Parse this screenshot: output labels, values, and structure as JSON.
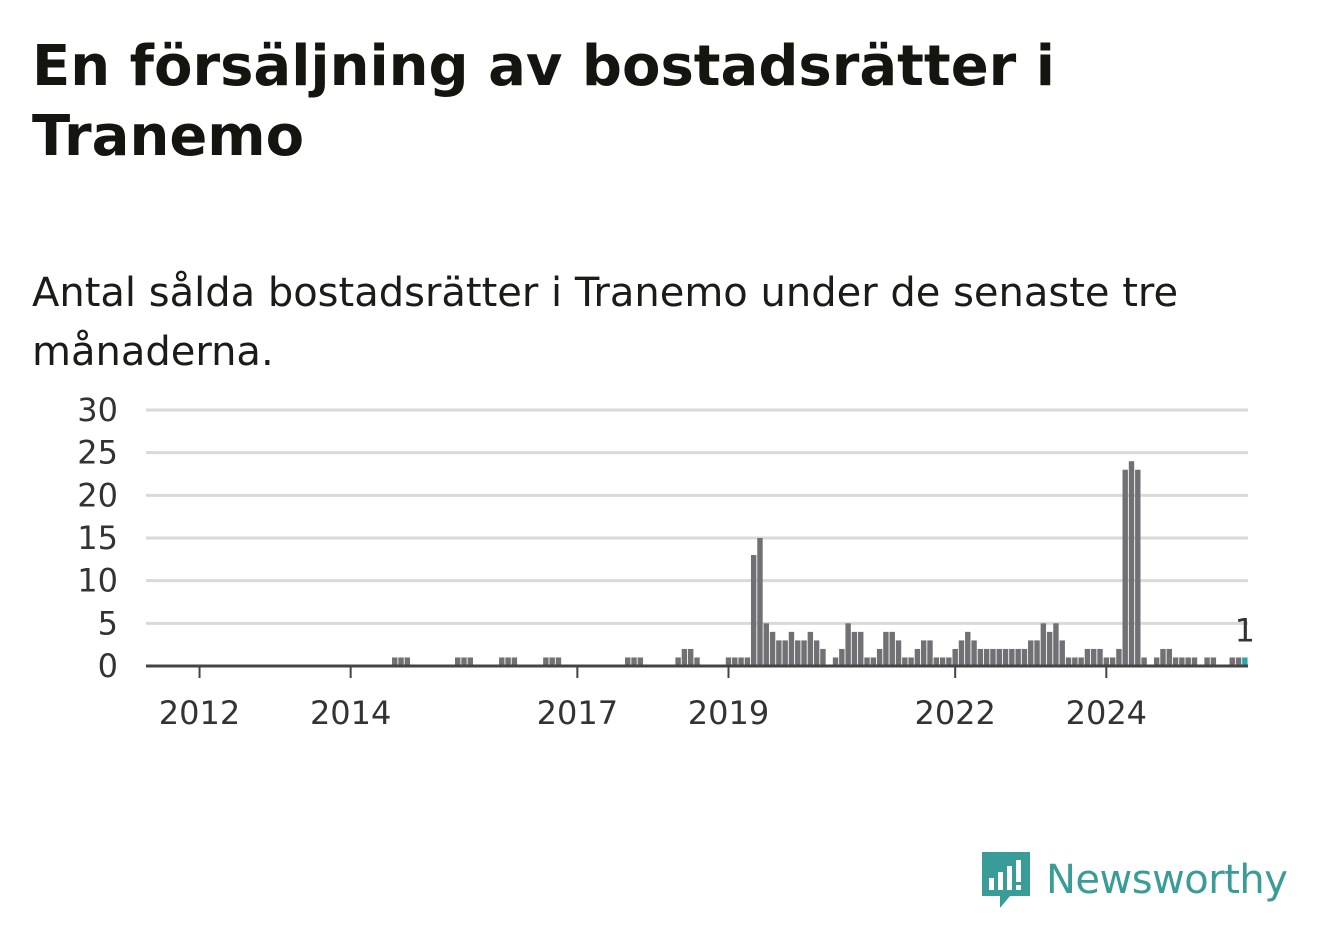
{
  "title": "En försäljning av bostadsrätter i Tranemo",
  "subtitle": "Antal sålda bostadsrätter i Tranemo under de senaste tre månaderna.",
  "brand": {
    "name": "Newsworthy",
    "icon": "newsworthy-logo-icon",
    "color": "#3a9c98"
  },
  "chart_data": {
    "type": "bar",
    "title": "En försäljning av bostadsrätter i Tranemo",
    "subtitle": "Antal sålda bostadsrätter i Tranemo under de senaste tre månaderna.",
    "xlabel": "",
    "ylabel": "",
    "ylim": [
      0,
      30
    ],
    "yticks": [
      "0",
      "5",
      "10",
      "15",
      "20",
      "25",
      "30"
    ],
    "xticks": [
      {
        "label": "2012",
        "x": "2012-01"
      },
      {
        "label": "2014",
        "x": "2014-01"
      },
      {
        "label": "2017",
        "x": "2017-01"
      },
      {
        "label": "2019",
        "x": "2019-01"
      },
      {
        "label": "2022",
        "x": "2022-01"
      },
      {
        "label": "2024",
        "x": "2024-01"
      }
    ],
    "grid": true,
    "bar_color": "#717074",
    "highlight_color": "#2aa7ae",
    "highlight_label": "1",
    "start": "2011-05",
    "series": [
      {
        "values": [
          0,
          0,
          0,
          0,
          0,
          0,
          0,
          0,
          0,
          0,
          0,
          0,
          0,
          0,
          0,
          0,
          0,
          0,
          0,
          0,
          0,
          0,
          0,
          0,
          0,
          0,
          0,
          0,
          0,
          0,
          0,
          0,
          0,
          0,
          0,
          0,
          0,
          0,
          0,
          1,
          1,
          1,
          0,
          0,
          0,
          0,
          0,
          0,
          0,
          1,
          1,
          1,
          0,
          0,
          0,
          0,
          1,
          1,
          1,
          0,
          0,
          0,
          0,
          1,
          1,
          1,
          0,
          0,
          0,
          0,
          0,
          0,
          0,
          0,
          0,
          0,
          1,
          1,
          1,
          0,
          0,
          0,
          0,
          0,
          1,
          2,
          2,
          1,
          0,
          0,
          0,
          0,
          1,
          1,
          1,
          1,
          13,
          15,
          5,
          4,
          3,
          3,
          4,
          3,
          3,
          4,
          3,
          2,
          0,
          1,
          2,
          5,
          4,
          4,
          1,
          1,
          2,
          4,
          4,
          3,
          1,
          1,
          2,
          3,
          3,
          1,
          1,
          1,
          2,
          3,
          4,
          3,
          2,
          2,
          2,
          2,
          2,
          2,
          2,
          2,
          3,
          3,
          5,
          4,
          5,
          3,
          1,
          1,
          1,
          2,
          2,
          2,
          1,
          1,
          2,
          23,
          24,
          23,
          1,
          0,
          1,
          2,
          2,
          1,
          1,
          1,
          1,
          0,
          1,
          1,
          0,
          0,
          1,
          1,
          1
        ]
      }
    ]
  }
}
